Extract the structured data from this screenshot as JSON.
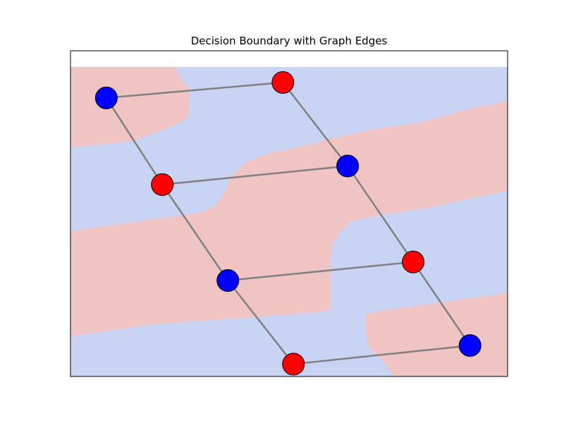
{
  "chart_data": {
    "type": "scatter",
    "title": "Decision Boundary with Graph Edges",
    "xlabel": "",
    "ylabel": "",
    "xlim": [
      0,
      100
    ],
    "ylim": [
      0,
      100
    ],
    "axes_visible": false,
    "grid": false,
    "colors": {
      "blue_region": "#c9d3f3",
      "red_region": "#efc4c3",
      "blue_node": "#0000ff",
      "red_node": "#ff0000",
      "edge": "#808080",
      "node_edge": "#000000"
    },
    "background": "blue_region",
    "regions": [
      {
        "class": "red",
        "polygon": [
          [
            0,
            100
          ],
          [
            24,
            100
          ],
          [
            24.5,
            98
          ],
          [
            27,
            93
          ],
          [
            27,
            84
          ],
          [
            25,
            82
          ],
          [
            20,
            79
          ],
          [
            14,
            76
          ],
          [
            7,
            75
          ],
          [
            0,
            74
          ]
        ]
      },
      {
        "class": "red",
        "polygon": [
          [
            0,
            47
          ],
          [
            10,
            49
          ],
          [
            20,
            51
          ],
          [
            30,
            53
          ],
          [
            33,
            55
          ],
          [
            35,
            59
          ],
          [
            37,
            65
          ],
          [
            40,
            69
          ],
          [
            45,
            72
          ],
          [
            52,
            74
          ],
          [
            60,
            77
          ],
          [
            70,
            80
          ],
          [
            80,
            82
          ],
          [
            90,
            86
          ],
          [
            100,
            89
          ],
          [
            100,
            60
          ],
          [
            90,
            57
          ],
          [
            80,
            54
          ],
          [
            70,
            52
          ],
          [
            64,
            50
          ],
          [
            62,
            47
          ],
          [
            60,
            43
          ],
          [
            59.5,
            38
          ],
          [
            59.5,
            22
          ],
          [
            58,
            21
          ],
          [
            50,
            20
          ],
          [
            40,
            19
          ],
          [
            30,
            18
          ],
          [
            20,
            17
          ],
          [
            10,
            15
          ],
          [
            0,
            13
          ]
        ]
      },
      {
        "class": "red",
        "polygon": [
          [
            67.5,
            20
          ],
          [
            70,
            21
          ],
          [
            80,
            23
          ],
          [
            90,
            25
          ],
          [
            100,
            27
          ],
          [
            100,
            0
          ],
          [
            74,
            0
          ],
          [
            72,
            4
          ],
          [
            70,
            7
          ],
          [
            68,
            10
          ],
          [
            67.5,
            14
          ]
        ]
      }
    ],
    "nodes": [
      {
        "id": 0,
        "class": "blue",
        "x": 8.2,
        "y": 90
      },
      {
        "id": 1,
        "class": "red",
        "x": 48.6,
        "y": 95
      },
      {
        "id": 2,
        "class": "red",
        "x": 21,
        "y": 62
      },
      {
        "id": 3,
        "class": "blue",
        "x": 63.4,
        "y": 68
      },
      {
        "id": 4,
        "class": "blue",
        "x": 36,
        "y": 31
      },
      {
        "id": 5,
        "class": "red",
        "x": 78.4,
        "y": 37
      },
      {
        "id": 6,
        "class": "red",
        "x": 51,
        "y": 4
      },
      {
        "id": 7,
        "class": "blue",
        "x": 91.4,
        "y": 10
      }
    ],
    "edges": [
      [
        0,
        1
      ],
      [
        0,
        2
      ],
      [
        1,
        3
      ],
      [
        2,
        3
      ],
      [
        2,
        4
      ],
      [
        3,
        5
      ],
      [
        4,
        5
      ],
      [
        4,
        6
      ],
      [
        5,
        7
      ],
      [
        6,
        7
      ]
    ]
  }
}
